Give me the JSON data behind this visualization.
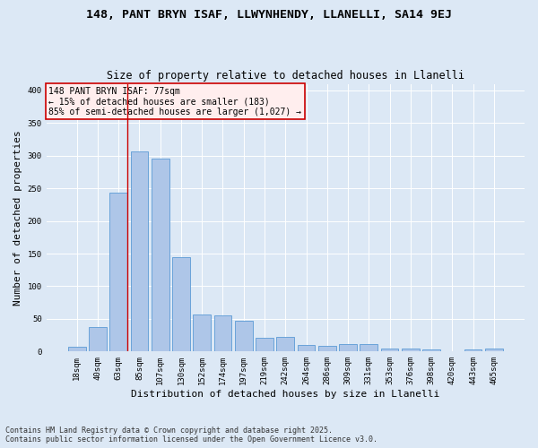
{
  "title1": "148, PANT BRYN ISAF, LLWYNHENDY, LLANELLI, SA14 9EJ",
  "title2": "Size of property relative to detached houses in Llanelli",
  "xlabel": "Distribution of detached houses by size in Llanelli",
  "ylabel": "Number of detached properties",
  "categories": [
    "18sqm",
    "40sqm",
    "63sqm",
    "85sqm",
    "107sqm",
    "130sqm",
    "152sqm",
    "174sqm",
    "197sqm",
    "219sqm",
    "242sqm",
    "264sqm",
    "286sqm",
    "309sqm",
    "331sqm",
    "353sqm",
    "376sqm",
    "398sqm",
    "420sqm",
    "443sqm",
    "465sqm"
  ],
  "values": [
    8,
    38,
    244,
    307,
    295,
    144,
    57,
    56,
    47,
    21,
    22,
    10,
    9,
    12,
    12,
    5,
    4,
    3,
    1,
    3,
    4
  ],
  "bar_color": "#aec6e8",
  "bar_edge_color": "#5b9bd5",
  "vline_x_index": 2,
  "vline_color": "#cc0000",
  "annotation_text": "148 PANT BRYN ISAF: 77sqm\n← 15% of detached houses are smaller (183)\n85% of semi-detached houses are larger (1,027) →",
  "annotation_box_color": "#ffeeee",
  "annotation_edge_color": "#cc0000",
  "ylim": [
    0,
    410
  ],
  "yticks": [
    0,
    50,
    100,
    150,
    200,
    250,
    300,
    350,
    400
  ],
  "bg_color": "#dce8f5",
  "plot_bg_color": "#dce8f5",
  "footnote": "Contains HM Land Registry data © Crown copyright and database right 2025.\nContains public sector information licensed under the Open Government Licence v3.0.",
  "title_fontsize": 9.5,
  "subtitle_fontsize": 8.5,
  "axis_label_fontsize": 8,
  "tick_fontsize": 6.5,
  "footnote_fontsize": 6,
  "annot_fontsize": 7
}
